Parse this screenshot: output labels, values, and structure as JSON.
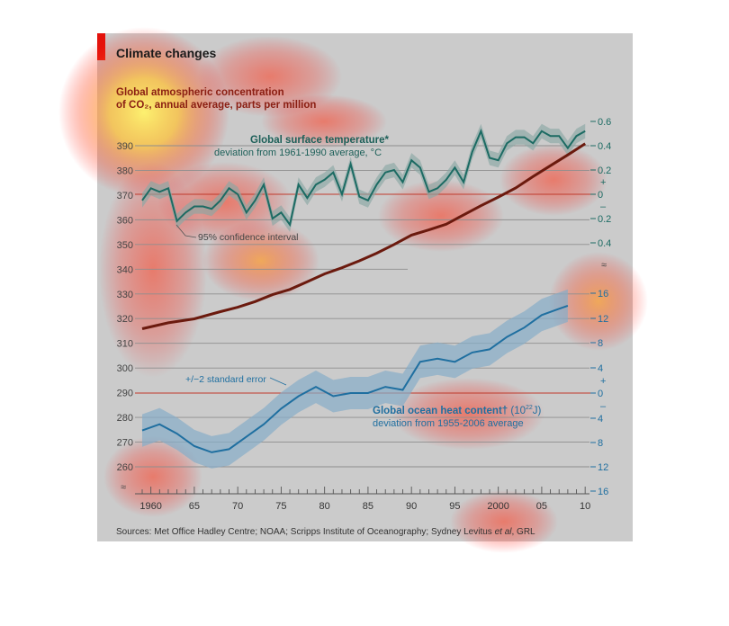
{
  "chart_data": {
    "type": "line",
    "title": "Climate changes",
    "sources": {
      "prefix": "Sources: Met Office Hadley Centre; NOAA; Scripps Institute of Oceanography; Sydney Levitus ",
      "italic": "et al",
      "suffix": ", GRL"
    },
    "x_ticks": [
      "1960",
      "65",
      "70",
      "75",
      "80",
      "85",
      "90",
      "95",
      "2000",
      "05",
      "10"
    ],
    "x_tick_years": [
      1960,
      1965,
      1970,
      1975,
      1980,
      1985,
      1990,
      1995,
      2000,
      2005,
      2010
    ],
    "xlim": [
      1959,
      2010.5
    ],
    "left_axis": {
      "label_line1": "Global atmospheric concentration",
      "label_line2": "of CO₂, annual average, parts per million",
      "ticks": [
        "390",
        "380",
        "370",
        "360",
        "350",
        "340",
        "330",
        "320",
        "310",
        "300",
        "290",
        "280",
        "270",
        "260"
      ],
      "tick_values": [
        390,
        380,
        370,
        360,
        350,
        340,
        330,
        320,
        310,
        300,
        290,
        280,
        270,
        260
      ],
      "ylim": [
        260,
        390
      ],
      "axis_break": true
    },
    "series": [
      {
        "name": "CO₂",
        "color": "#6b1a0e",
        "x": [
          1959,
          1962,
          1965,
          1968,
          1970,
          1972,
          1974,
          1976,
          1978,
          1980,
          1982,
          1984,
          1986,
          1988,
          1990,
          1992,
          1994,
          1996,
          1998,
          2000,
          2002,
          2004,
          2006,
          2008,
          2010
        ],
        "values": [
          315.9,
          318.3,
          319.9,
          322.8,
          324.6,
          326.9,
          329.7,
          331.8,
          334.9,
          338.1,
          340.6,
          343.4,
          346.5,
          350.0,
          353.8,
          355.9,
          358.2,
          362.0,
          365.7,
          369.2,
          372.9,
          377.5,
          381.9,
          386.3,
          390.8
        ]
      },
      {
        "name": "Global surface temperature*",
        "subtitle": "deviation from 1961-1990 average, °C",
        "color": "#1c6b63",
        "axis": {
          "ticks": [
            "0.6",
            "0.4",
            "0.2",
            "+",
            "0",
            "–",
            "0.2",
            "0.4"
          ],
          "ylim": [
            -0.4,
            0.6
          ]
        },
        "confidence_label": "95% confidence interval",
        "x": [
          1959,
          1960,
          1961,
          1962,
          1963,
          1964,
          1965,
          1966,
          1967,
          1968,
          1969,
          1970,
          1971,
          1972,
          1973,
          1974,
          1975,
          1976,
          1977,
          1978,
          1979,
          1980,
          1981,
          1982,
          1983,
          1984,
          1985,
          1986,
          1987,
          1988,
          1989,
          1990,
          1991,
          1992,
          1993,
          1994,
          1995,
          1996,
          1997,
          1998,
          1999,
          2000,
          2001,
          2002,
          2003,
          2004,
          2005,
          2006,
          2007,
          2008,
          2009,
          2010
        ],
        "values": [
          -0.05,
          0.05,
          0.02,
          0.05,
          -0.22,
          -0.15,
          -0.1,
          -0.1,
          -0.12,
          -0.05,
          0.05,
          0.0,
          -0.15,
          -0.05,
          0.08,
          -0.2,
          -0.15,
          -0.25,
          0.08,
          -0.03,
          0.08,
          0.12,
          0.18,
          0.0,
          0.25,
          -0.02,
          -0.05,
          0.08,
          0.18,
          0.2,
          0.1,
          0.28,
          0.22,
          0.02,
          0.05,
          0.12,
          0.22,
          0.1,
          0.35,
          0.52,
          0.3,
          0.28,
          0.42,
          0.47,
          0.47,
          0.42,
          0.52,
          0.48,
          0.48,
          0.38,
          0.48,
          0.52
        ]
      },
      {
        "name": "Global ocean heat content†",
        "unit_prefix": " (10",
        "unit_exp": "22",
        "unit_suffix": "J)",
        "subtitle": "deviation from 1955-2006 average",
        "color": "#1f6fa0",
        "axis": {
          "ticks": [
            "16",
            "12",
            "8",
            "4",
            "+",
            "0",
            "–",
            "4",
            "8",
            "12",
            "16"
          ],
          "ylim": [
            -16,
            16
          ]
        },
        "error_label": "+/−2 standard error",
        "x": [
          1959,
          1961,
          1963,
          1965,
          1967,
          1969,
          1971,
          1973,
          1975,
          1977,
          1979,
          1981,
          1983,
          1985,
          1987,
          1989,
          1991,
          1993,
          1995,
          1997,
          1999,
          2001,
          2003,
          2005,
          2007,
          2008
        ],
        "values": [
          -6.0,
          -5.0,
          -6.5,
          -8.5,
          -9.5,
          -9.0,
          -7.0,
          -5.0,
          -2.5,
          -0.5,
          1.0,
          -0.5,
          0.0,
          0.0,
          1.0,
          0.5,
          5.0,
          5.5,
          5.0,
          6.5,
          7.0,
          9.0,
          10.5,
          12.5,
          13.5,
          14.0
        ]
      }
    ],
    "grid": true,
    "zero_lines": "red"
  }
}
